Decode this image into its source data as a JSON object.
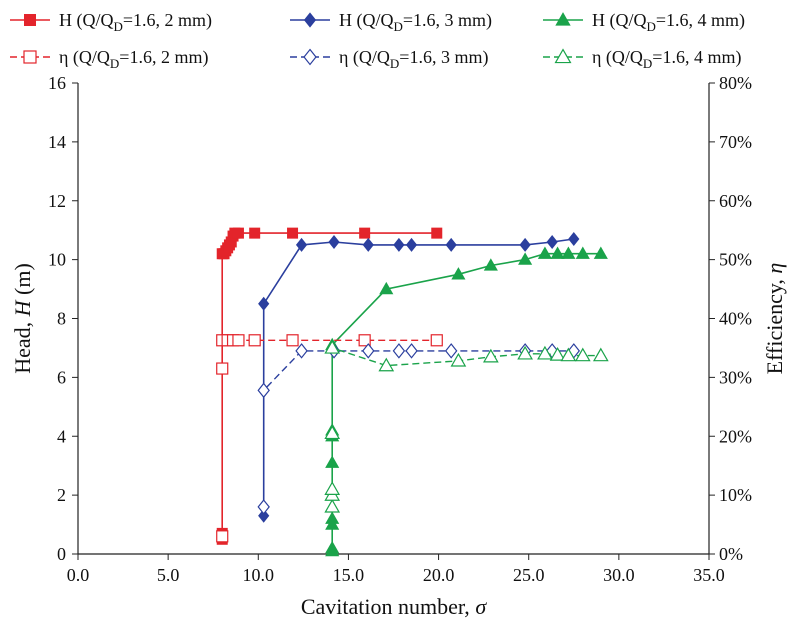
{
  "chart_data": {
    "type": "line",
    "title": "",
    "xlabel": {
      "text": "Cavitation number, ",
      "var": "σ"
    },
    "ylabel": {
      "text": "Head, ",
      "var": "H",
      "unit": " (m)"
    },
    "y2label": {
      "text": "Efficiency, ",
      "var": "η"
    },
    "xlim": [
      0,
      35
    ],
    "ylim": [
      0,
      16
    ],
    "y2lim": [
      0,
      80
    ],
    "x_ticks": [
      "0.0",
      "5.0",
      "10.0",
      "15.0",
      "20.0",
      "25.0",
      "30.0",
      "35.0"
    ],
    "y_ticks": [
      "0",
      "2",
      "4",
      "6",
      "8",
      "10",
      "12",
      "14",
      "16"
    ],
    "y2_ticks": [
      "0%",
      "10%",
      "20%",
      "30%",
      "40%",
      "50%",
      "60%",
      "70%",
      "80%"
    ],
    "legend_placement": "top",
    "series": [
      {
        "name": "H (Q/QD=1.6, 2 mm)",
        "legend": {
          "sym": "H",
          "pre": " (Q/Q",
          "sub": "D",
          "post": "=1.6, 2 mm)"
        },
        "color": "#e3242b",
        "marker": "square",
        "filled": true,
        "dash": false,
        "axis": "left",
        "x": [
          8.0,
          8.0,
          8.0,
          8.1,
          8.2,
          8.3,
          8.4,
          8.5,
          8.6,
          8.7,
          8.9,
          9.8,
          11.9,
          15.9,
          19.9
        ],
        "y": [
          0.5,
          0.7,
          10.2,
          10.2,
          10.3,
          10.4,
          10.5,
          10.6,
          10.8,
          10.9,
          10.9,
          10.9,
          10.9,
          10.9,
          10.9
        ]
      },
      {
        "name": "H (Q/QD=1.6, 3 mm)",
        "legend": {
          "sym": "H",
          "pre": " (Q/Q",
          "sub": "D",
          "post": "=1.6, 3 mm)"
        },
        "color": "#2b3f9e",
        "marker": "diamond",
        "filled": true,
        "dash": false,
        "axis": "left",
        "x": [
          10.3,
          10.3,
          12.4,
          14.2,
          16.1,
          17.8,
          18.5,
          20.7,
          24.8,
          26.3,
          27.5
        ],
        "y": [
          1.3,
          8.5,
          10.5,
          10.6,
          10.5,
          10.5,
          10.5,
          10.5,
          10.5,
          10.6,
          10.7
        ]
      },
      {
        "name": "H (Q/QD=1.6, 4 mm)",
        "legend": {
          "sym": "H",
          "pre": " (Q/Q",
          "sub": "D",
          "post": "=1.6, 4 mm)"
        },
        "color": "#1aa34a",
        "marker": "triangle",
        "filled": true,
        "dash": false,
        "axis": "left",
        "x": [
          14.1,
          14.1,
          14.1,
          14.1,
          14.1,
          14.1,
          14.1,
          14.1,
          17.1,
          21.1,
          22.9,
          24.8,
          25.9,
          26.6,
          27.2,
          28.0,
          29.0
        ],
        "y": [
          0.1,
          0.2,
          1.0,
          1.2,
          3.1,
          4.0,
          4.2,
          7.1,
          9.0,
          9.5,
          9.8,
          10.0,
          10.2,
          10.2,
          10.2,
          10.2,
          10.2
        ]
      },
      {
        "name": "η (Q/QD=1.6, 2 mm)",
        "legend": {
          "sym": "η",
          "pre": " (Q/Q",
          "sub": "D",
          "post": "=1.6, 2 mm)"
        },
        "color": "#e3242b",
        "marker": "square",
        "filled": false,
        "dash": true,
        "axis": "right",
        "x": [
          8.0,
          8.0,
          8.0,
          8.3,
          8.6,
          8.9,
          9.8,
          11.9,
          15.9,
          19.9
        ],
        "y": [
          3.0,
          31.5,
          36.3,
          36.3,
          36.3,
          36.3,
          36.3,
          36.3,
          36.3,
          36.3
        ]
      },
      {
        "name": "η (Q/QD=1.6, 3 mm)",
        "legend": {
          "sym": "η",
          "pre": " (Q/Q",
          "sub": "D",
          "post": "=1.6, 3 mm)"
        },
        "color": "#2b3f9e",
        "marker": "diamond",
        "filled": false,
        "dash": true,
        "axis": "right",
        "x": [
          10.3,
          10.3,
          12.4,
          14.2,
          16.1,
          17.8,
          18.5,
          20.7,
          24.8,
          26.3,
          27.5
        ],
        "y": [
          8.0,
          27.8,
          34.5,
          34.5,
          34.5,
          34.5,
          34.5,
          34.5,
          34.5,
          34.5,
          34.5
        ]
      },
      {
        "name": "η (Q/QD=1.6, 4 mm)",
        "legend": {
          "sym": "η",
          "pre": " (Q/Q",
          "sub": "D",
          "post": "=1.6, 4 mm)"
        },
        "color": "#1aa34a",
        "marker": "triangle",
        "filled": false,
        "dash": true,
        "axis": "right",
        "x": [
          14.1,
          14.1,
          14.1,
          14.1,
          14.1,
          17.1,
          21.1,
          22.9,
          24.8,
          25.9,
          26.6,
          27.2,
          28.0,
          29.0
        ],
        "y": [
          8.0,
          10.0,
          11.0,
          20.5,
          35.0,
          32.0,
          32.8,
          33.5,
          34.0,
          34.0,
          33.8,
          33.7,
          33.7,
          33.7
        ]
      }
    ]
  }
}
